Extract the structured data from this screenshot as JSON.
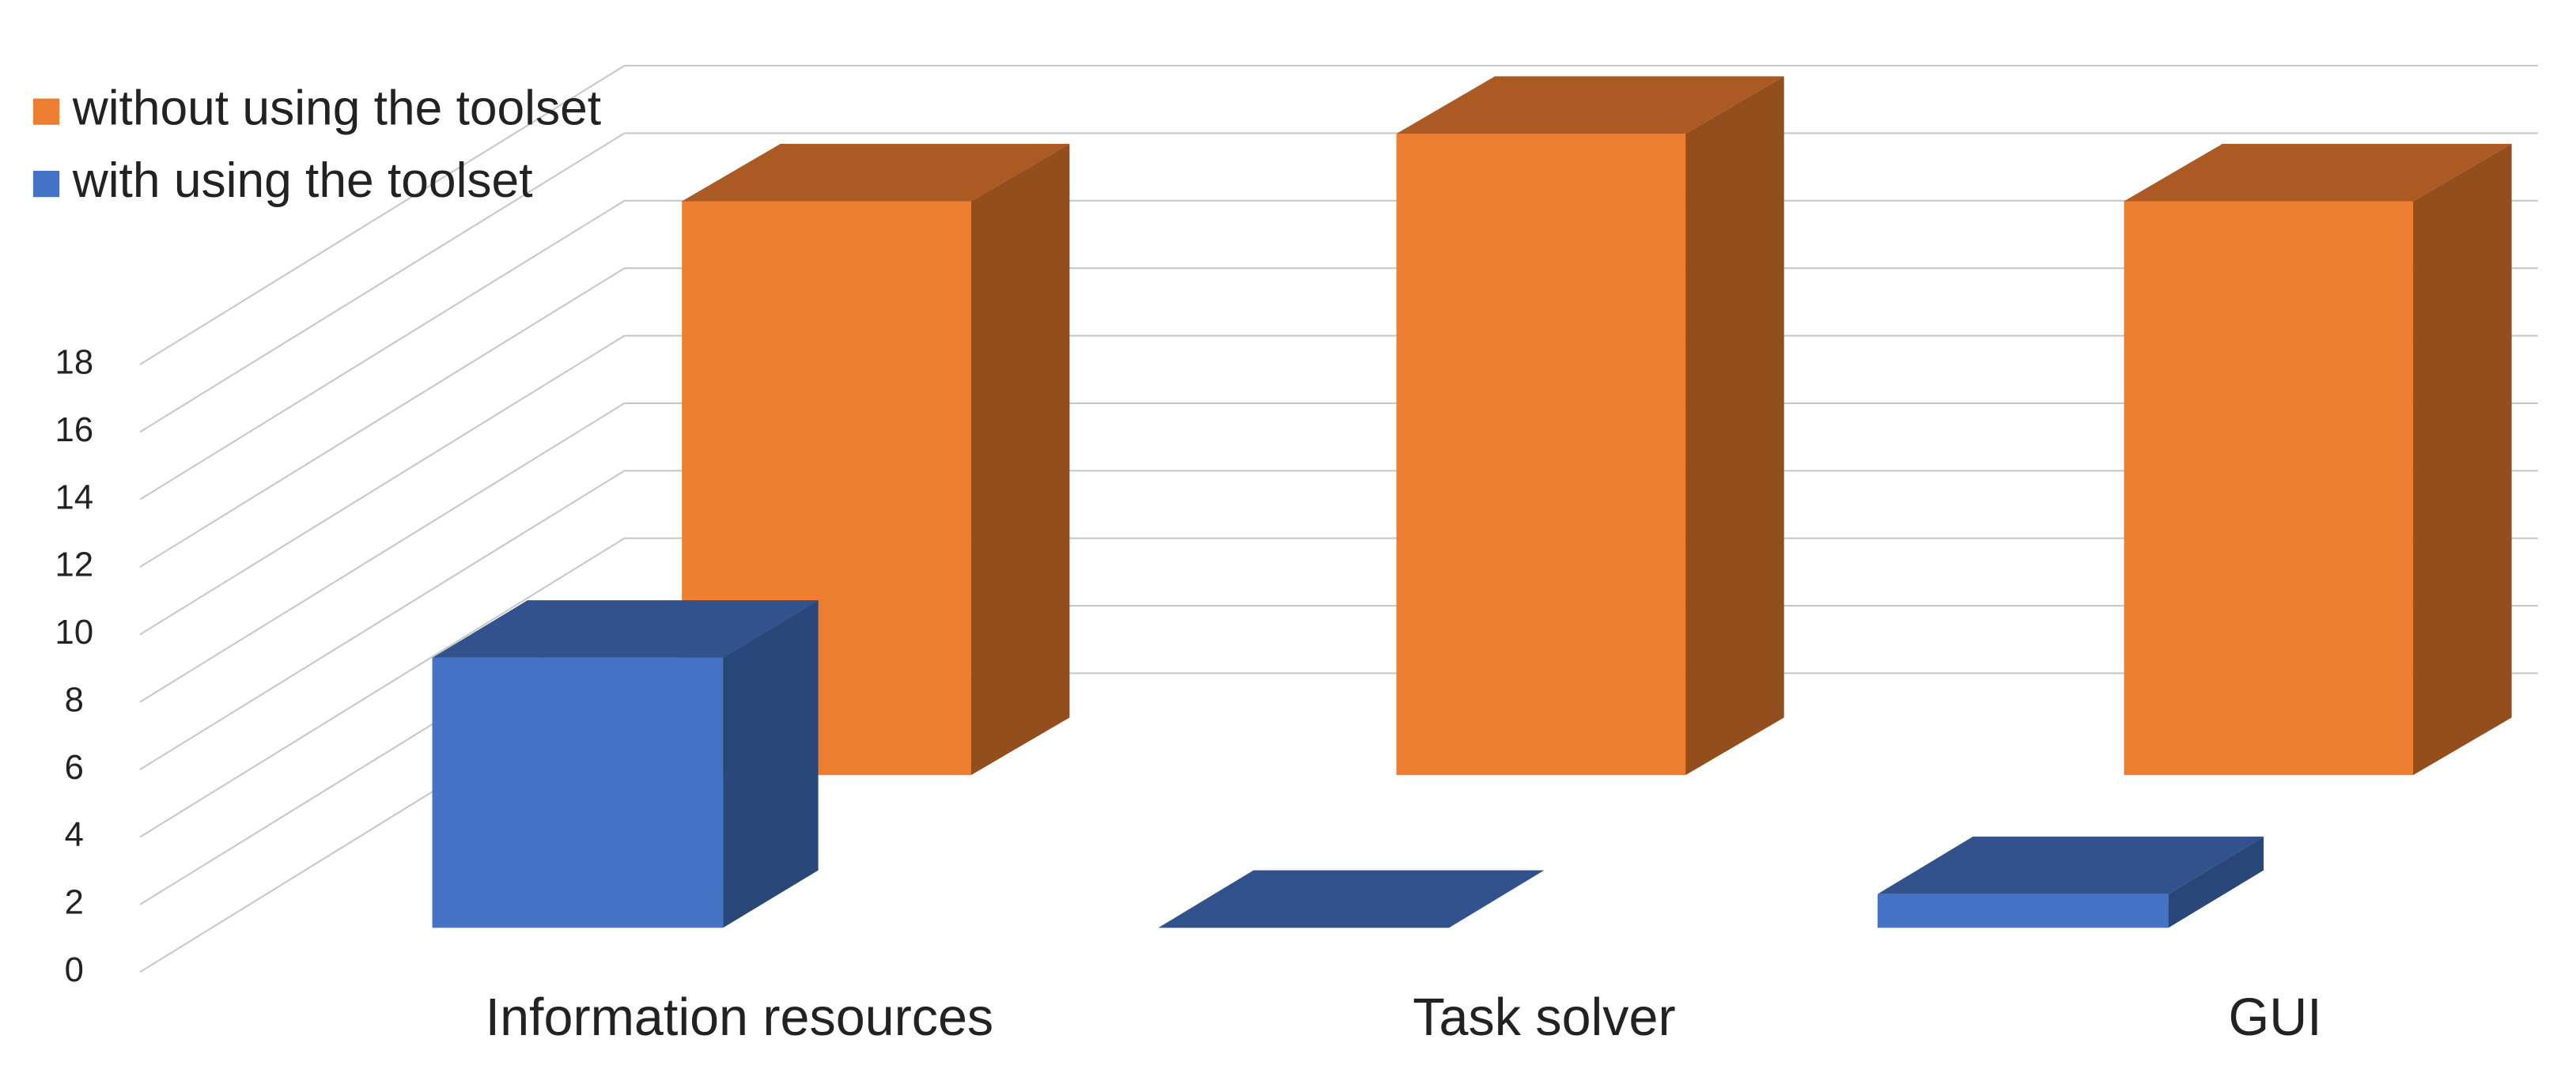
{
  "chart_data": {
    "type": "bar3d",
    "categories": [
      "Information resources",
      "Task solver",
      "GUI"
    ],
    "series": [
      {
        "name": "without using the toolset",
        "color": "#ED7D31",
        "values": [
          17,
          19,
          17
        ]
      },
      {
        "name": "with using the toolset",
        "color": "#4472C4",
        "values": [
          8,
          0,
          1
        ]
      }
    ],
    "ylim": [
      0,
      18
    ],
    "yticks": [
      0,
      2,
      4,
      6,
      8,
      10,
      12,
      14,
      16,
      18
    ],
    "grid": true,
    "legend": "top-left"
  }
}
